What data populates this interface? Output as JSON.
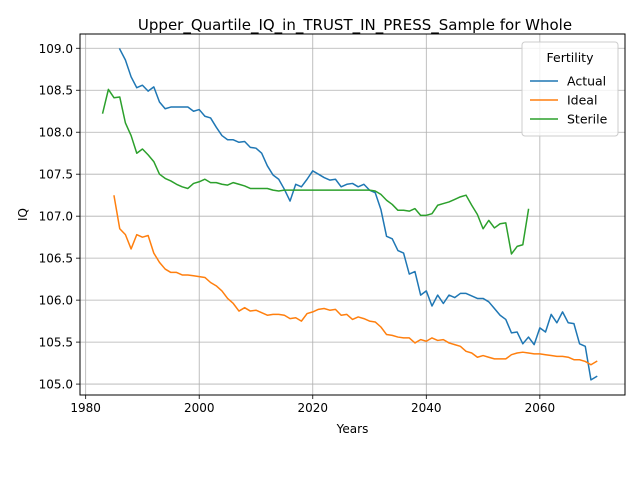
{
  "chart_data": {
    "type": "line",
    "title": "Upper_Quartile_IQ_in_TRUST_IN_PRESS_Sample for Whole",
    "xlabel": "Years",
    "ylabel": "IQ",
    "xlim": [
      1979,
      2075
    ],
    "ylim": [
      104.87,
      109.17
    ],
    "xticks": [
      1980,
      2000,
      2020,
      2040,
      2060
    ],
    "yticks": [
      105.0,
      105.5,
      106.0,
      106.5,
      107.0,
      107.5,
      108.0,
      108.5,
      109.0
    ],
    "grid": true,
    "legend": {
      "title": "Fertility",
      "placement": "top-right"
    },
    "series": [
      {
        "name": "Actual",
        "color": "#1f77b4",
        "x": [
          1986,
          1987,
          1988,
          1989,
          1990,
          1991,
          1992,
          1993,
          1994,
          1995,
          1996,
          1997,
          1998,
          1999,
          2000,
          2001,
          2002,
          2003,
          2004,
          2005,
          2006,
          2007,
          2008,
          2009,
          2010,
          2011,
          2012,
          2013,
          2014,
          2015,
          2016,
          2017,
          2018,
          2019,
          2020,
          2021,
          2022,
          2023,
          2024,
          2025,
          2026,
          2027,
          2028,
          2029,
          2030,
          2031,
          2032,
          2033,
          2034,
          2035,
          2036,
          2037,
          2038,
          2039,
          2040,
          2041,
          2042,
          2043,
          2044,
          2045,
          2046,
          2047,
          2048,
          2049,
          2050,
          2051,
          2052,
          2053,
          2054,
          2055,
          2056,
          2057,
          2058,
          2059,
          2060,
          2061,
          2062,
          2063,
          2064,
          2065,
          2066,
          2067,
          2068,
          2069,
          2070
        ],
        "values": [
          108.99,
          108.86,
          108.66,
          108.53,
          108.56,
          108.49,
          108.54,
          108.36,
          108.28,
          108.3,
          108.3,
          108.3,
          108.3,
          108.25,
          108.27,
          108.19,
          108.17,
          108.06,
          107.96,
          107.91,
          107.91,
          107.88,
          107.89,
          107.82,
          107.81,
          107.75,
          107.6,
          107.49,
          107.44,
          107.32,
          107.18,
          107.38,
          107.35,
          107.44,
          107.54,
          107.5,
          107.46,
          107.43,
          107.44,
          107.35,
          107.38,
          107.39,
          107.35,
          107.38,
          107.31,
          107.28,
          107.08,
          106.76,
          106.73,
          106.59,
          106.56,
          106.31,
          106.34,
          106.06,
          106.11,
          105.93,
          106.06,
          105.96,
          106.06,
          106.03,
          106.08,
          106.08,
          106.05,
          106.02,
          106.02,
          105.98,
          105.9,
          105.82,
          105.77,
          105.61,
          105.62,
          105.48,
          105.56,
          105.47,
          105.67,
          105.62,
          105.83,
          105.73,
          105.86,
          105.73,
          105.72,
          105.48,
          105.45,
          105.05,
          105.09
        ]
      },
      {
        "name": "Ideal",
        "color": "#ff7f0e",
        "x": [
          1985,
          1986,
          1987,
          1988,
          1989,
          1990,
          1991,
          1992,
          1993,
          1994,
          1995,
          1996,
          1997,
          1998,
          1999,
          2000,
          2001,
          2002,
          2003,
          2004,
          2005,
          2006,
          2007,
          2008,
          2009,
          2010,
          2011,
          2012,
          2013,
          2014,
          2015,
          2016,
          2017,
          2018,
          2019,
          2020,
          2021,
          2022,
          2023,
          2024,
          2025,
          2026,
          2027,
          2028,
          2029,
          2030,
          2031,
          2032,
          2033,
          2034,
          2035,
          2036,
          2037,
          2038,
          2039,
          2040,
          2041,
          2042,
          2043,
          2044,
          2045,
          2046,
          2047,
          2048,
          2049,
          2050,
          2051,
          2052,
          2053,
          2054,
          2055,
          2056,
          2057,
          2058,
          2059,
          2060,
          2061,
          2062,
          2063,
          2064,
          2065,
          2066,
          2067,
          2068,
          2069,
          2070
        ],
        "values": [
          107.24,
          106.85,
          106.78,
          106.61,
          106.78,
          106.75,
          106.77,
          106.56,
          106.45,
          106.37,
          106.33,
          106.33,
          106.3,
          106.3,
          106.29,
          106.28,
          106.27,
          106.21,
          106.17,
          106.11,
          106.02,
          105.96,
          105.87,
          105.91,
          105.87,
          105.88,
          105.85,
          105.82,
          105.83,
          105.83,
          105.82,
          105.78,
          105.79,
          105.75,
          105.84,
          105.86,
          105.89,
          105.9,
          105.88,
          105.89,
          105.82,
          105.83,
          105.77,
          105.8,
          105.78,
          105.75,
          105.74,
          105.68,
          105.59,
          105.58,
          105.56,
          105.55,
          105.55,
          105.49,
          105.53,
          105.51,
          105.55,
          105.52,
          105.53,
          105.49,
          105.47,
          105.45,
          105.39,
          105.37,
          105.32,
          105.34,
          105.32,
          105.3,
          105.3,
          105.3,
          105.35,
          105.37,
          105.38,
          105.37,
          105.36,
          105.36,
          105.35,
          105.34,
          105.33,
          105.33,
          105.32,
          105.29,
          105.29,
          105.27,
          105.23,
          105.27
        ]
      },
      {
        "name": "Sterile",
        "color": "#2ca02c",
        "x": [
          1983,
          1984,
          1985,
          1986,
          1987,
          1988,
          1989,
          1990,
          1991,
          1992,
          1993,
          1994,
          1995,
          1996,
          1997,
          1998,
          1999,
          2000,
          2001,
          2002,
          2003,
          2004,
          2005,
          2006,
          2007,
          2008,
          2009,
          2010,
          2011,
          2012,
          2013,
          2014,
          2015,
          2016,
          2017,
          2018,
          2019,
          2020,
          2021,
          2022,
          2023,
          2024,
          2025,
          2026,
          2027,
          2028,
          2029,
          2030,
          2031,
          2032,
          2033,
          2034,
          2035,
          2036,
          2037,
          2038,
          2039,
          2040,
          2041,
          2042,
          2043,
          2044,
          2045,
          2046,
          2047,
          2048,
          2049,
          2050,
          2051,
          2052,
          2053,
          2054,
          2055,
          2056,
          2057,
          2058
        ],
        "values": [
          108.23,
          108.51,
          108.41,
          108.42,
          108.11,
          107.96,
          107.75,
          107.8,
          107.73,
          107.65,
          107.5,
          107.45,
          107.42,
          107.38,
          107.35,
          107.33,
          107.39,
          107.41,
          107.44,
          107.4,
          107.4,
          107.38,
          107.37,
          107.4,
          107.38,
          107.36,
          107.33,
          107.33,
          107.33,
          107.33,
          107.31,
          107.3,
          107.31,
          107.31,
          107.31,
          107.31,
          107.31,
          107.31,
          107.31,
          107.31,
          107.31,
          107.31,
          107.31,
          107.31,
          107.31,
          107.31,
          107.31,
          107.31,
          107.3,
          107.26,
          107.19,
          107.14,
          107.07,
          107.07,
          107.06,
          107.09,
          107.01,
          107.01,
          107.03,
          107.13,
          107.15,
          107.17,
          107.2,
          107.23,
          107.25,
          107.13,
          107.02,
          106.85,
          106.95,
          106.86,
          106.91,
          106.92,
          106.55,
          106.64,
          106.66,
          107.08
        ]
      }
    ]
  }
}
